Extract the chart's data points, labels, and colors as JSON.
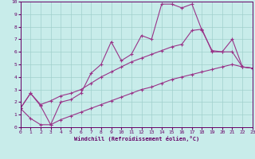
{
  "bg_color": "#c8ecea",
  "grid_color": "#a0d0cc",
  "line_color": "#993388",
  "spine_color": "#660066",
  "label_color": "#660066",
  "xlabel": "Windchill (Refroidissement éolien,°C)",
  "xlim": [
    0,
    23
  ],
  "ylim": [
    0,
    10
  ],
  "xticks": [
    0,
    1,
    2,
    3,
    4,
    5,
    6,
    7,
    8,
    9,
    10,
    11,
    12,
    13,
    14,
    15,
    16,
    17,
    18,
    19,
    20,
    21,
    22,
    23
  ],
  "yticks": [
    0,
    1,
    2,
    3,
    4,
    5,
    6,
    7,
    8,
    9,
    10
  ],
  "line1_x": [
    0,
    1,
    2,
    3,
    4,
    5,
    6,
    7,
    8,
    9,
    10,
    11,
    12,
    13,
    14,
    15,
    16,
    17,
    18,
    19,
    20,
    21,
    22,
    23
  ],
  "line1_y": [
    1.5,
    2.7,
    1.7,
    0.2,
    2.0,
    2.2,
    2.7,
    4.3,
    5.0,
    6.8,
    5.3,
    5.8,
    7.3,
    7.0,
    9.8,
    9.8,
    9.5,
    9.8,
    7.7,
    6.1,
    6.0,
    7.0,
    4.8,
    4.7
  ],
  "line2_x": [
    0,
    1,
    2,
    3,
    4,
    5,
    6,
    7,
    8,
    9,
    10,
    11,
    12,
    13,
    14,
    15,
    16,
    17,
    18,
    19,
    20,
    21,
    22,
    23
  ],
  "line2_y": [
    1.5,
    2.7,
    1.8,
    2.1,
    2.5,
    2.7,
    3.0,
    3.5,
    4.0,
    4.4,
    4.8,
    5.2,
    5.5,
    5.8,
    6.1,
    6.4,
    6.6,
    7.7,
    7.8,
    6.0,
    6.0,
    6.0,
    4.8,
    4.7
  ],
  "line3_x": [
    0,
    1,
    2,
    3,
    4,
    5,
    6,
    7,
    8,
    9,
    10,
    11,
    12,
    13,
    14,
    15,
    16,
    17,
    18,
    19,
    20,
    21,
    22,
    23
  ],
  "line3_y": [
    1.5,
    0.7,
    0.2,
    0.2,
    0.6,
    0.9,
    1.2,
    1.5,
    1.8,
    2.1,
    2.4,
    2.7,
    3.0,
    3.2,
    3.5,
    3.8,
    4.0,
    4.2,
    4.4,
    4.6,
    4.8,
    5.0,
    4.8,
    4.7
  ],
  "tick_fontsize": 4.5,
  "xlabel_fontsize": 5.0
}
